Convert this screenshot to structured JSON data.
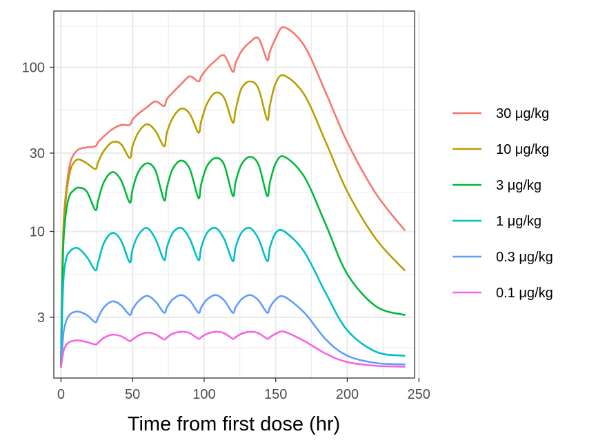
{
  "chart_data": {
    "type": "line",
    "title": "",
    "xlabel": "Time from first dose (hr)",
    "ylabel": "",
    "xlim": [
      -5,
      247
    ],
    "ylim": [
      1.28,
      220
    ],
    "y_scale": "log",
    "x_ticks": [
      0,
      50,
      100,
      150,
      200,
      250
    ],
    "x_tick_labels": [
      "0",
      "50",
      "100",
      "150",
      "200",
      "250"
    ],
    "y_ticks": [
      3,
      10,
      30,
      100
    ],
    "y_tick_labels": [
      "3",
      "10",
      "30",
      "100"
    ],
    "grid": true,
    "legend_position": "right",
    "x": [
      0,
      1,
      2,
      4,
      6,
      8,
      12,
      18,
      24,
      26,
      30,
      36,
      42,
      48,
      50,
      54,
      60,
      66,
      72,
      74,
      78,
      84,
      90,
      96,
      98,
      102,
      108,
      114,
      120,
      122,
      126,
      132,
      138,
      144,
      146,
      150,
      156,
      170,
      185,
      200,
      220,
      240
    ],
    "series": [
      {
        "name": "30 μg/kg",
        "color": "#F8766D",
        "values": [
          1.5,
          6,
          12,
          19,
          25,
          28.5,
          31.5,
          32.5,
          33,
          35,
          38,
          42,
          44.5,
          44.5,
          48,
          52,
          57,
          62,
          58,
          64,
          70,
          79,
          88,
          82,
          88,
          98,
          110,
          118,
          94,
          106,
          125,
          142,
          150,
          111,
          125,
          150,
          175,
          135,
          70,
          35,
          17,
          10.2
        ]
      },
      {
        "name": "10 μg/kg",
        "color": "#B79F00",
        "values": [
          1.5,
          5.5,
          11,
          17.5,
          22.5,
          25.5,
          27.5,
          26,
          24,
          26.5,
          31,
          35,
          34,
          28,
          33,
          40,
          45,
          41,
          33,
          40,
          49,
          56,
          52,
          40,
          47,
          60,
          70,
          65,
          46,
          55,
          74,
          82,
          74,
          48,
          59,
          80,
          89,
          68,
          35,
          17.5,
          9,
          5.8
        ]
      },
      {
        "name": "3 μg/kg",
        "color": "#00BA38",
        "values": [
          1.5,
          5,
          9.5,
          14,
          16.5,
          17.5,
          18.5,
          17.5,
          13.5,
          15.5,
          20,
          23,
          20.5,
          15,
          18,
          23,
          26,
          23.5,
          15.5,
          18.5,
          24,
          27,
          24,
          16,
          19.5,
          25,
          28,
          25.5,
          16.5,
          20,
          25.5,
          28.5,
          25.5,
          16.5,
          20,
          26,
          28.5,
          21.5,
          11,
          5.5,
          3.5,
          3.1
        ]
      },
      {
        "name": "1 μg/kg",
        "color": "#00BFC4",
        "values": [
          1.5,
          3.5,
          5.5,
          7,
          7.5,
          7.8,
          7.9,
          7,
          5.8,
          6.5,
          8.5,
          9.8,
          8.8,
          6.5,
          7.8,
          9.5,
          10.5,
          9,
          6.7,
          8,
          9.8,
          10.5,
          9,
          6.7,
          8,
          9.8,
          10.5,
          9,
          6.6,
          8,
          9.8,
          10.5,
          9,
          6.6,
          8,
          9.8,
          10,
          7.5,
          4.2,
          2.5,
          1.85,
          1.75
        ]
      },
      {
        "name": "0.3 μg/kg",
        "color": "#619CFF",
        "values": [
          1.5,
          2,
          2.5,
          2.9,
          3.1,
          3.2,
          3.25,
          3.1,
          2.8,
          3,
          3.45,
          3.75,
          3.55,
          3.1,
          3.35,
          3.75,
          4.05,
          3.75,
          3.2,
          3.45,
          3.85,
          4.1,
          3.8,
          3.2,
          3.45,
          3.85,
          4.1,
          3.8,
          3.2,
          3.45,
          3.85,
          4.1,
          3.8,
          3.2,
          3.45,
          3.85,
          4.0,
          3.2,
          2.2,
          1.75,
          1.58,
          1.55
        ]
      },
      {
        "name": "0.1 μg/kg",
        "color": "#F564E3",
        "values": [
          1.5,
          1.7,
          1.9,
          2.05,
          2.12,
          2.15,
          2.17,
          2.12,
          2.05,
          2.1,
          2.25,
          2.35,
          2.3,
          2.15,
          2.2,
          2.32,
          2.42,
          2.36,
          2.2,
          2.26,
          2.38,
          2.45,
          2.4,
          2.22,
          2.27,
          2.38,
          2.45,
          2.4,
          2.22,
          2.27,
          2.38,
          2.45,
          2.4,
          2.22,
          2.27,
          2.38,
          2.45,
          2.15,
          1.8,
          1.6,
          1.52,
          1.5
        ]
      }
    ]
  }
}
